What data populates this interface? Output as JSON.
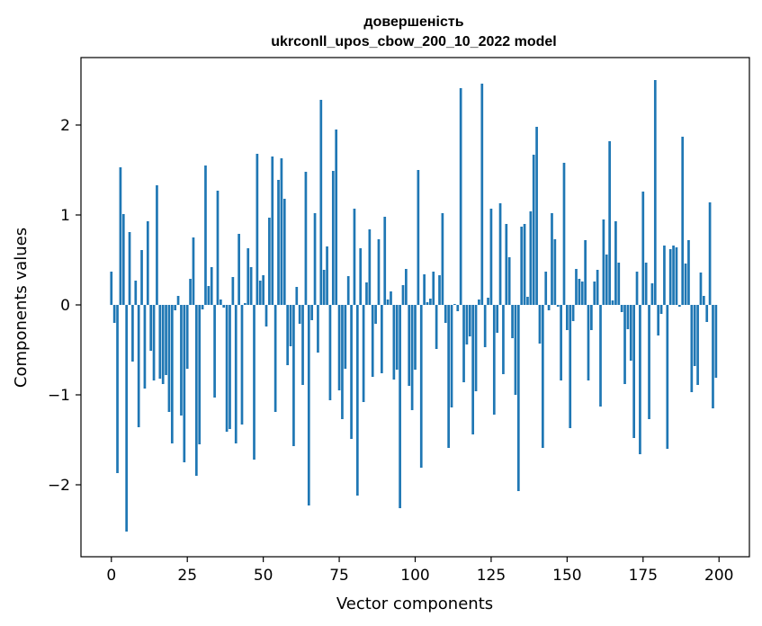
{
  "chart_data": {
    "type": "bar",
    "title": [
      "довершеність",
      "ukrconll_upos_cbow_200_10_2022 model"
    ],
    "xlabel": "Vector components",
    "ylabel": "Components values",
    "xlim": [
      -10,
      210
    ],
    "ylim": [
      -2.8,
      2.75
    ],
    "xticks": [
      0,
      25,
      50,
      75,
      100,
      125,
      150,
      175,
      200
    ],
    "yticks": [
      -2,
      -1,
      0,
      1,
      2
    ],
    "ytick_labels": [
      "−2",
      "−1",
      "0",
      "1",
      "2"
    ],
    "grid": false,
    "bar_color": "#1f77b4",
    "values": [
      0.37,
      -0.2,
      -1.87,
      1.53,
      1.01,
      -2.52,
      0.81,
      -0.63,
      0.27,
      -1.36,
      0.61,
      -0.93,
      0.93,
      -0.51,
      -0.84,
      1.33,
      -0.82,
      -0.88,
      -0.78,
      -1.19,
      -1.54,
      -0.06,
      0.1,
      -1.23,
      -1.75,
      -0.71,
      0.29,
      0.75,
      -1.9,
      -1.55,
      -0.05,
      1.55,
      0.21,
      0.42,
      -1.03,
      1.27,
      0.06,
      -0.03,
      -1.41,
      -1.38,
      0.31,
      -1.54,
      0.79,
      -1.33,
      0.02,
      0.63,
      0.42,
      -1.72,
      1.68,
      0.27,
      0.33,
      -0.24,
      0.97,
      1.65,
      -1.19,
      1.39,
      1.63,
      1.18,
      -0.67,
      -0.46,
      -1.57,
      0.2,
      -0.21,
      -0.89,
      1.48,
      -2.23,
      -0.17,
      1.02,
      -0.53,
      2.28,
      0.39,
      0.65,
      -1.06,
      1.49,
      1.95,
      -0.95,
      -1.27,
      -0.71,
      0.32,
      -1.49,
      1.07,
      -2.12,
      0.63,
      -1.08,
      0.25,
      0.84,
      -0.8,
      -0.21,
      0.73,
      -0.76,
      0.98,
      0.06,
      0.15,
      -0.83,
      -0.72,
      -2.26,
      0.22,
      0.4,
      -0.9,
      -1.17,
      -0.72,
      1.5,
      -1.81,
      0.34,
      0.03,
      0.07,
      0.37,
      -0.49,
      0.33,
      1.02,
      -0.2,
      -1.59,
      -1.14,
      0.01,
      -0.07,
      2.41,
      -0.86,
      -0.44,
      -0.35,
      -1.44,
      -0.96,
      0.06,
      2.46,
      -0.47,
      0.08,
      1.07,
      -1.22,
      -0.31,
      1.13,
      -0.77,
      0.9,
      0.53,
      -0.37,
      -1.0,
      -2.07,
      0.87,
      0.9,
      0.09,
      1.04,
      1.67,
      1.98,
      -0.43,
      -1.59,
      0.37,
      -0.06,
      1.02,
      0.73,
      -0.02,
      -0.84,
      1.58,
      -0.28,
      -1.37,
      -0.18,
      0.4,
      0.29,
      0.26,
      0.72,
      -0.84,
      -0.28,
      0.26,
      0.39,
      -1.13,
      0.95,
      0.56,
      1.82,
      0.05,
      0.93,
      0.47,
      -0.08,
      -0.88,
      -0.27,
      -0.62,
      -1.48,
      0.37,
      -1.66,
      1.26,
      0.47,
      -1.27,
      0.24,
      2.5,
      -0.34,
      -0.1,
      0.66,
      -1.6,
      0.62,
      0.66,
      0.64,
      -0.02,
      1.87,
      0.46,
      0.72,
      -0.97,
      -0.68,
      -0.89,
      0.36,
      0.1,
      -0.19,
      1.14,
      -1.15,
      -0.81
    ]
  }
}
